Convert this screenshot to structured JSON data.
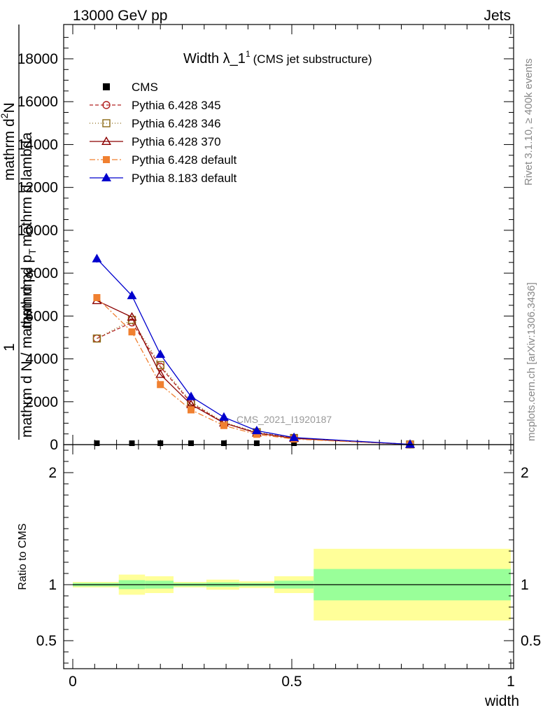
{
  "header": {
    "left": "13000 GeV pp",
    "right": "Jets"
  },
  "side": {
    "rivet": "Rivet 3.1.10, ≥ 400k events",
    "mcplots": "mcplots.cern.ch [arXiv:1306.3436]"
  },
  "chart_data": {
    "type": "line",
    "title_main": "Width λ_1",
    "title_sup": "1",
    "title_sub": "(CMS jet substructure)",
    "watermark": "CMS_2021_I1920187",
    "ylabel_main": {
      "prefix": "1",
      "den1": "mathrm d N / mathrm d p",
      "den1_sub": "T",
      "num2": "mathrm d",
      "num2_sup": "2",
      "num2_rest": "N",
      "den2": "mathrm d p",
      "den2_sub": "T",
      "den2_rest": "mathrm d lambda"
    },
    "xlabel": "width",
    "ratio_ylabel": "Ratio to CMS",
    "xlim": [
      0,
      1
    ],
    "ylim": [
      0,
      19600
    ],
    "ratio_ylim": [
      0.25,
      2.25
    ],
    "x_ticks": [
      "0",
      "0.5",
      "1"
    ],
    "y_ticks": [
      "0",
      "2000",
      "4000",
      "6000",
      "8000",
      "10000",
      "12000",
      "14000",
      "16000",
      "18000"
    ],
    "ratio_ticks": [
      "0.5",
      "1",
      "2"
    ],
    "x": [
      0.055,
      0.135,
      0.2,
      0.27,
      0.345,
      0.42,
      0.505,
      0.77
    ],
    "series": [
      {
        "name": "CMS",
        "color": "#000000",
        "marker": "square-filled",
        "dash": "",
        "values": [
          3,
          3,
          3,
          3,
          3,
          3,
          3,
          3
        ]
      },
      {
        "name": "Pythia 6.428 345",
        "color": "#b22222",
        "marker": "circle-open",
        "dash": "5,3",
        "values": [
          4950,
          5700,
          3630,
          1950,
          1010,
          560,
          300,
          10
        ]
      },
      {
        "name": "Pythia 6.428 346",
        "color": "#8b6914",
        "marker": "square-open",
        "dash": "1,3",
        "values": [
          4950,
          5820,
          3710,
          2000,
          1040,
          580,
          310,
          10
        ]
      },
      {
        "name": "Pythia 6.428 370",
        "color": "#8b0000",
        "marker": "triangle-open",
        "dash": "",
        "values": [
          6720,
          5950,
          3280,
          1870,
          1010,
          540,
          290,
          10
        ]
      },
      {
        "name": "Pythia 6.428 default",
        "color": "#f08030",
        "marker": "square-filled",
        "dash": "8,3,2,3",
        "values": [
          6860,
          5260,
          2800,
          1620,
          890,
          480,
          260,
          10
        ]
      },
      {
        "name": "Pythia 8.183 default",
        "color": "#0000cd",
        "marker": "triangle-filled",
        "dash": "",
        "values": [
          8670,
          6950,
          4210,
          2240,
          1280,
          650,
          330,
          12
        ]
      }
    ],
    "ratio_bands": [
      {
        "x0": 0.0,
        "x1": 0.105,
        "yellow": [
          0.975,
          1.025
        ],
        "green": [
          0.985,
          1.015
        ]
      },
      {
        "x0": 0.105,
        "x1": 0.165,
        "yellow": [
          0.91,
          1.09
        ],
        "green": [
          0.96,
          1.04
        ]
      },
      {
        "x0": 0.165,
        "x1": 0.23,
        "yellow": [
          0.925,
          1.075
        ],
        "green": [
          0.965,
          1.035
        ]
      },
      {
        "x0": 0.23,
        "x1": 0.305,
        "yellow": [
          0.975,
          1.025
        ],
        "green": [
          0.985,
          1.015
        ]
      },
      {
        "x0": 0.305,
        "x1": 0.38,
        "yellow": [
          0.955,
          1.045
        ],
        "green": [
          0.98,
          1.02
        ]
      },
      {
        "x0": 0.38,
        "x1": 0.46,
        "yellow": [
          0.97,
          1.03
        ],
        "green": [
          0.985,
          1.015
        ]
      },
      {
        "x0": 0.46,
        "x1": 0.55,
        "yellow": [
          0.925,
          1.075
        ],
        "green": [
          0.965,
          1.035
        ]
      },
      {
        "x0": 0.55,
        "x1": 1.0,
        "yellow": [
          0.68,
          1.32
        ],
        "green": [
          0.86,
          1.14
        ]
      }
    ]
  },
  "colors": {
    "band_yellow": "#ffff99",
    "band_green": "#99ff99"
  }
}
